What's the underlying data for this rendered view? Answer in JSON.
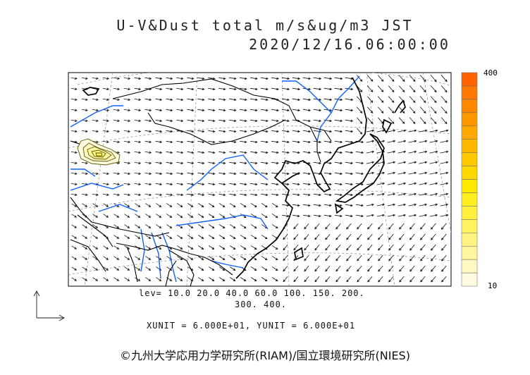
{
  "title": {
    "line1": "U-V&Dust total m/s&ug/m3 JST",
    "line2": "2020/12/16.06:00:00"
  },
  "legend": {
    "levels_line1": "lev= 10.0 20.0 40.0 60.0 100. 150. 200.",
    "levels_line2": "300. 400.",
    "units_line": "XUNIT = 6.000E+01, YUNIT = 6.000E+01",
    "colorbar_max": "400",
    "colorbar_min": "10",
    "colorbar_colors": [
      "#fffbe0",
      "#fff8c0",
      "#fff6a0",
      "#fff480",
      "#fff260",
      "#fff040",
      "#ffee20",
      "#ffe800",
      "#ffd800",
      "#ffc800",
      "#ffb800",
      "#ffa800",
      "#ff9800",
      "#ff8800",
      "#ff7800",
      "#ff6400"
    ]
  },
  "credit": "©九州大学応用力学研究所(RIAM)/国立環境研究所(NIES)",
  "map": {
    "region": "East Asia",
    "coast_color": "#000000",
    "river_color": "#1060ff",
    "dust_contour_color": "#5a5a00"
  }
}
